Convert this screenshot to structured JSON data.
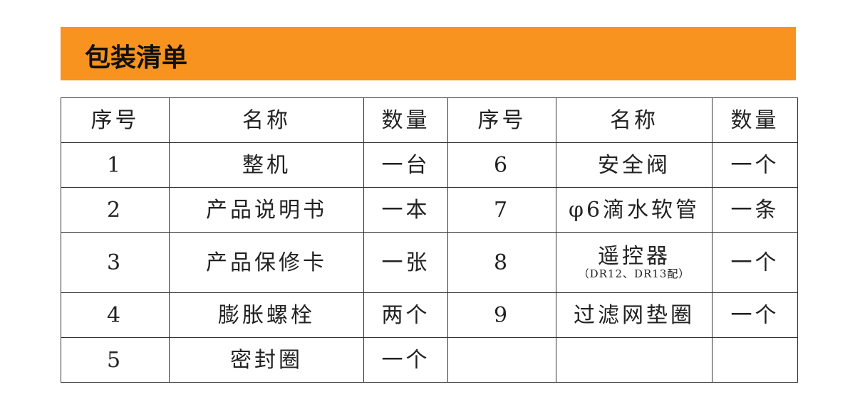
{
  "title": "包装清单",
  "headers": [
    "序号",
    "名称",
    "数量",
    "序号",
    "名称",
    "数量"
  ],
  "rows": [
    {
      "n1": "1",
      "name1": "整机",
      "q1": "一台",
      "n2": "6",
      "name2": "安全阀",
      "note2": "",
      "q2": "一个"
    },
    {
      "n1": "2",
      "name1": "产品说明书",
      "q1": "一本",
      "n2": "7",
      "name2": "φ6滴水软管",
      "note2": "",
      "q2": "一条"
    },
    {
      "n1": "3",
      "name1": "产品保修卡",
      "q1": "一张",
      "n2": "8",
      "name2": "遥控器",
      "note2": "（DR12、DR13配）",
      "q2": "一个"
    },
    {
      "n1": "4",
      "name1": "膨胀螺栓",
      "q1": "两个",
      "n2": "9",
      "name2": "过滤网垫圈",
      "note2": "",
      "q2": "一个"
    },
    {
      "n1": "5",
      "name1": "密封圈",
      "q1": "一个",
      "n2": "",
      "name2": "",
      "note2": "",
      "q2": ""
    }
  ],
  "colors": {
    "header_bar": "#F7931E"
  }
}
